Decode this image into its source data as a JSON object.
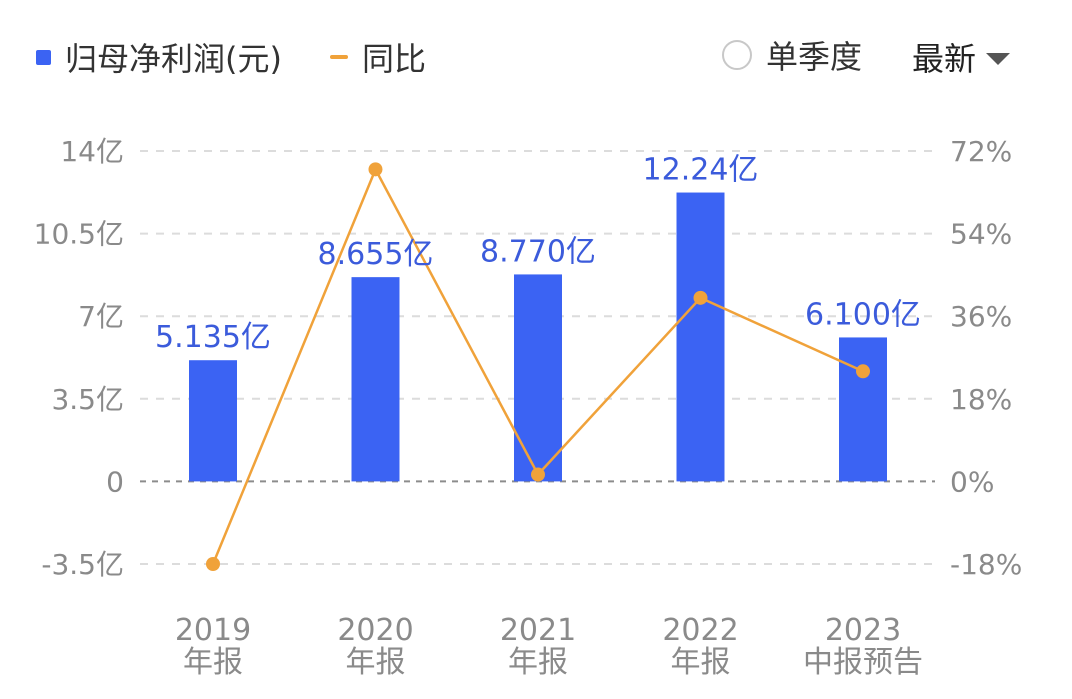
{
  "legend": {
    "bar_label": "归母净利润(元)",
    "line_label": "同比"
  },
  "controls": {
    "single_quarter_label": "单季度",
    "latest_label": "最新"
  },
  "colors": {
    "bar": "#3b63f3",
    "line": "#f0a23a",
    "data_label": "#3b5bdb",
    "grid": "#dcdcdc",
    "tick": "#8a8a8a"
  },
  "chart_data": {
    "type": "bar",
    "categories": [
      [
        "2019",
        "年报"
      ],
      [
        "2020",
        "年报"
      ],
      [
        "2021",
        "年报"
      ],
      [
        "2022",
        "年报"
      ],
      [
        "2023",
        "中报预告"
      ]
    ],
    "series": [
      {
        "name": "归母净利润(元)",
        "type": "bar",
        "axis": "left",
        "values": [
          5.135,
          8.655,
          8.77,
          12.24,
          6.1
        ],
        "data_labels": [
          "5.135亿",
          "8.655亿",
          "8.770亿",
          "12.24亿",
          "6.100亿"
        ]
      },
      {
        "name": "同比",
        "type": "line",
        "axis": "right",
        "values": [
          -18,
          68,
          1.5,
          40,
          24
        ]
      }
    ],
    "left_axis": {
      "ylim": [
        -3.5,
        14
      ],
      "ticks": [
        14,
        10.5,
        7,
        3.5,
        0,
        -3.5
      ],
      "tick_labels": [
        "14亿",
        "10.5亿",
        "7亿",
        "3.5亿",
        "0",
        "-3.5亿"
      ]
    },
    "right_axis": {
      "ylim": [
        -18,
        72
      ],
      "ticks": [
        72,
        54,
        36,
        18,
        0,
        -18
      ],
      "tick_labels": [
        "72%",
        "54%",
        "36%",
        "18%",
        "0%",
        "-18%"
      ]
    },
    "grid": true,
    "legend_position": "top-left"
  }
}
